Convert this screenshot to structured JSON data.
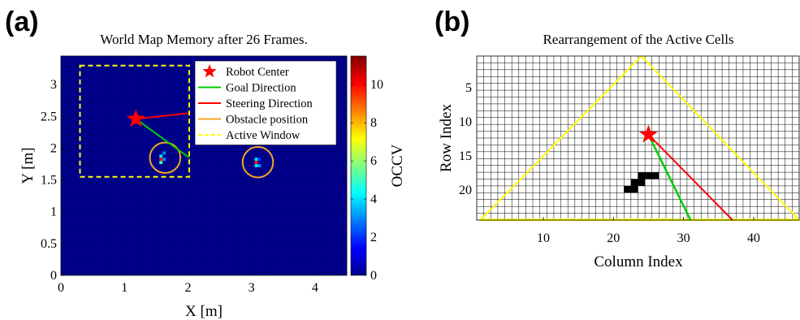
{
  "panels": {
    "a": {
      "label": "(a)"
    },
    "b": {
      "label": "(b)"
    }
  },
  "chart_data": [
    {
      "type": "heatmap",
      "title": "World Map Memory after 26 Frames.",
      "xlabel": "X [m]",
      "ylabel": "Y [m]",
      "xlim": [
        0,
        4.5
      ],
      "ylim": [
        0,
        3.45
      ],
      "xticks": [
        "0",
        "1",
        "2",
        "3",
        "4"
      ],
      "yticks": [
        "0",
        "0.5",
        "1",
        "1.5",
        "2",
        "2.5",
        "3"
      ],
      "grid_cell_size_m": 0.05,
      "colorbar": {
        "label": "OCCV",
        "range": [
          0,
          11.5
        ],
        "ticks": [
          "0",
          "2",
          "4",
          "6",
          "8",
          "10"
        ],
        "colormap": "jet"
      },
      "background_value": 0,
      "occupied_cells": [
        {
          "x": 1.575,
          "y": 1.875,
          "v": 4
        },
        {
          "x": 1.575,
          "y": 1.825,
          "v": 10
        },
        {
          "x": 1.575,
          "y": 1.775,
          "v": 5
        },
        {
          "x": 1.625,
          "y": 1.925,
          "v": 3
        },
        {
          "x": 1.625,
          "y": 1.825,
          "v": 3
        },
        {
          "x": 3.075,
          "y": 1.825,
          "v": 4
        },
        {
          "x": 3.075,
          "y": 1.775,
          "v": 10
        },
        {
          "x": 3.075,
          "y": 1.725,
          "v": 4
        },
        {
          "x": 3.125,
          "y": 1.825,
          "v": 2
        },
        {
          "x": 3.125,
          "y": 1.725,
          "v": 3
        }
      ],
      "robot_center": {
        "x": 1.18,
        "y": 2.46
      },
      "goal_direction": {
        "from": [
          1.18,
          2.46
        ],
        "to": [
          2.02,
          1.85
        ],
        "color": "#00cc00"
      },
      "steering_direction": {
        "from": [
          1.18,
          2.46
        ],
        "to": [
          2.0,
          2.55
        ],
        "color": "#ff0000"
      },
      "obstacle_circles": [
        {
          "x": 1.64,
          "y": 1.85,
          "r": 0.24
        },
        {
          "x": 3.1,
          "y": 1.78,
          "r": 0.24
        }
      ],
      "active_window": {
        "x": [
          0.3,
          2.02
        ],
        "y": [
          1.55,
          3.3
        ],
        "color": "#ffff00"
      },
      "legend": {
        "position": "top-right",
        "entries": [
          {
            "label": "Robot Center",
            "marker": "star",
            "color": "#ff0000"
          },
          {
            "label": "Goal Direction",
            "marker": "line",
            "color": "#00cc00"
          },
          {
            "label": "Steering Direction",
            "marker": "line",
            "color": "#ff0000"
          },
          {
            "label": "Obstacle position",
            "marker": "line",
            "color": "#f5a623"
          },
          {
            "label": "Active Window",
            "marker": "dashed-line",
            "color": "#ffff00"
          }
        ]
      }
    },
    {
      "type": "heatmap",
      "title": "Rearrangement of the Active Cells",
      "xlabel": "Column Index",
      "ylabel": "Row Index",
      "xlim": [
        0.5,
        46.5
      ],
      "ylim_reversed": [
        0.5,
        24.5
      ],
      "xticks": [
        "10",
        "20",
        "30",
        "40"
      ],
      "yticks": [
        "5",
        "10",
        "15",
        "20"
      ],
      "grid": true,
      "triangle": {
        "apex": [
          24,
          0.5
        ],
        "left": [
          1,
          24.5
        ],
        "right": [
          46.5,
          24.5
        ],
        "color": "#ffff00"
      },
      "robot_center": {
        "col": 25,
        "row": 12
      },
      "goal_direction": {
        "from": [
          25,
          12
        ],
        "to": [
          31,
          24.5
        ],
        "color": "#00cc00"
      },
      "steering_direction": {
        "from": [
          25,
          12
        ],
        "to": [
          37,
          24.5
        ],
        "color": "#ff0000"
      },
      "black_cells": [
        {
          "col": 22,
          "row": 20
        },
        {
          "col": 23,
          "row": 20
        },
        {
          "col": 23,
          "row": 19
        },
        {
          "col": 24,
          "row": 19
        },
        {
          "col": 24,
          "row": 18
        },
        {
          "col": 25,
          "row": 18
        },
        {
          "col": 26,
          "row": 18
        }
      ]
    }
  ]
}
